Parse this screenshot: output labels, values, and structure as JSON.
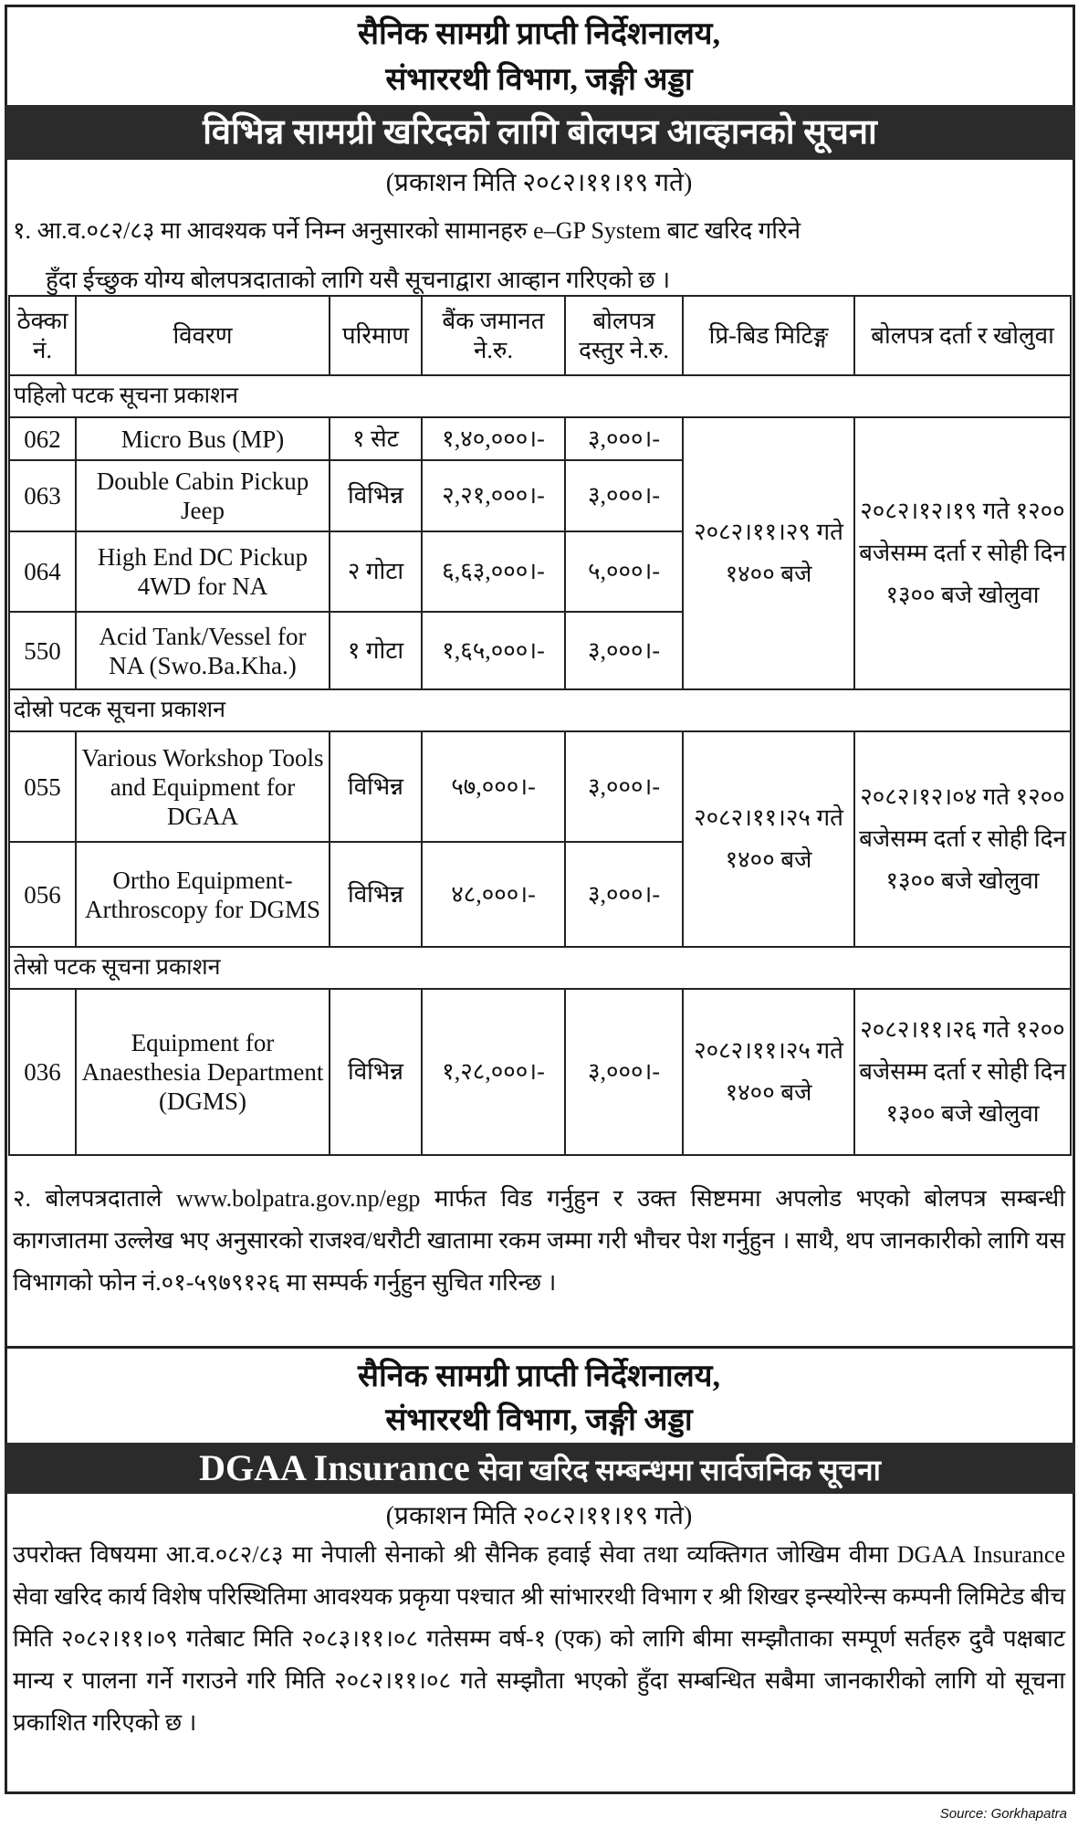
{
  "notice1": {
    "org_line1": "सैनिक सामग्री प्राप्ती निर्देशनालय,",
    "org_line2": "संभाररथी विभाग, जङ्गी अड्डा",
    "title": "विभिन्न सामग्री खरिदको लागि बोलपत्र आव्हानको सूचना",
    "pub_date": "(प्रकाशन मिति २०८२।११।१९ गते)",
    "para1_line1": "१. आ.व.०८२/८३ मा आवश्यक पर्ने निम्न अनुसारको सामानहरु e–GP System बाट खरिद गरिने",
    "para1_line2": "हुँदा ईच्छुक योग्य बोलपत्रदाताको लागि यसै सूचनाद्वारा आव्हान गरिएको छ ।",
    "table": {
      "headers": [
        "ठेक्का नं.",
        "विवरण",
        "परिमाण",
        "बैंक जमानत ने.रु.",
        "बोलपत्र दस्तुर ने.रु.",
        "प्रि-बिड मिटिङ्ग",
        "बोलपत्र दर्ता र खोलुवा"
      ],
      "groups": [
        {
          "section": "पहिलो पटक सूचना प्रकाशन",
          "prebid": "२०८२।११।२९ गते १४०० बजे",
          "opening": "२०८२।१२।१९ गते १२०० बजेसम्म दर्ता र सोही दिन १३०० बजे खोलुवा",
          "rows": [
            {
              "no": "062",
              "desc": "Micro Bus (MP)",
              "qty": "१ सेट",
              "bank": "१,४०,०००।-",
              "fee": "३,०००।-"
            },
            {
              "no": "063",
              "desc": "Double Cabin Pickup Jeep",
              "qty": "विभिन्न",
              "bank": "२,२१,०००।-",
              "fee": "३,०००।-"
            },
            {
              "no": "064",
              "desc": "High End DC Pickup 4WD for NA",
              "qty": "२ गोटा",
              "bank": "६,६३,०००।-",
              "fee": "५,०००।-"
            },
            {
              "no": "550",
              "desc": "Acid Tank/Vessel for NA (Swo.Ba.Kha.)",
              "qty": "१ गोटा",
              "bank": "१,६५,०००।-",
              "fee": "३,०००।-"
            }
          ]
        },
        {
          "section": "दोस्रो पटक सूचना प्रकाशन",
          "prebid": "२०८२।११।२५ गते १४०० बजे",
          "opening": "२०८२।१२।०४ गते १२०० बजेसम्म दर्ता र सोही दिन १३०० बजे खोलुवा",
          "rows": [
            {
              "no": "055",
              "desc": "Various Workshop Tools and Equipment for DGAA",
              "qty": "विभिन्न",
              "bank": "५७,०००।-",
              "fee": "३,०००।-"
            },
            {
              "no": "056",
              "desc": "Ortho Equipment-Arthroscopy for DGMS",
              "qty": "विभिन्न",
              "bank": "४८,०००।-",
              "fee": "३,०००।-"
            }
          ]
        },
        {
          "section": "तेस्रो पटक सूचना प्रकाशन",
          "prebid": "२०८२।११।२५ गते १४०० बजे",
          "opening": "२०८२।११।२६ गते १२०० बजेसम्म दर्ता र सोही दिन १३०० बजे खोलुवा",
          "rows": [
            {
              "no": "036",
              "desc": "Equipment for Anaesthesia Department (DGMS)",
              "qty": "विभिन्न",
              "bank": "१,२८,०००।-",
              "fee": "३,०००।-"
            }
          ]
        }
      ]
    },
    "para2": "२. बोलपत्रदाताले www.bolpatra.gov.np/egp मार्फत विड गर्नुहुन र उक्त सिष्टममा अपलोड भएको बोलपत्र सम्बन्धी कागजातमा उल्लेख भए अनुसारको राजश्व/धरौटी खातामा रकम जम्मा गरी भौचर पेश गर्नुहुन । साथै, थप जानकारीको लागि यस विभागको फोन नं.०१-५९७९१२६ मा सम्पर्क गर्नुहुन सुचित गरिन्छ ।"
  },
  "notice2": {
    "org_line1": "सैनिक सामग्री प्राप्ती निर्देशनालय,",
    "org_line2": "संभाररथी विभाग, जङ्गी अड्डा",
    "title_en": "DGAA Insurance",
    "title_np": "सेवा खरिद सम्बन्धमा सार्वजनिक सूचना",
    "pub_date": "(प्रकाशन मिति २०८२।११।१९ गते)",
    "body": "उपरोक्त विषयमा आ.व.०८२/८३ मा नेपाली सेनाको श्री सैनिक हवाई सेवा तथा व्यक्तिगत जोखिम वीमा DGAA Insurance सेवा खरिद कार्य विशेष परिस्थितिमा आवश्यक प्रकृया पश्चात श्री सांभाररथी विभाग र श्री शिखर इन्स्योरेन्स कम्पनी लिमिटेड बीच मिति २०८२।११।०९ गतेबाट मिति २०८३।११।०८ गतेसम्म वर्ष-१ (एक) को लागि बीमा सम्झौताका सम्पूर्ण सर्तहरु दुवै पक्षबाट मान्य र पालना गर्ने गराउने गरि मिति २०८२।११।०८ गते सम्झौता भएको हुँदा सम्बन्धित सबैमा जानकारीको लागि यो सूचना प्रकाशित गरिएको छ ।"
  },
  "source": "Source: Gorkhapatra"
}
